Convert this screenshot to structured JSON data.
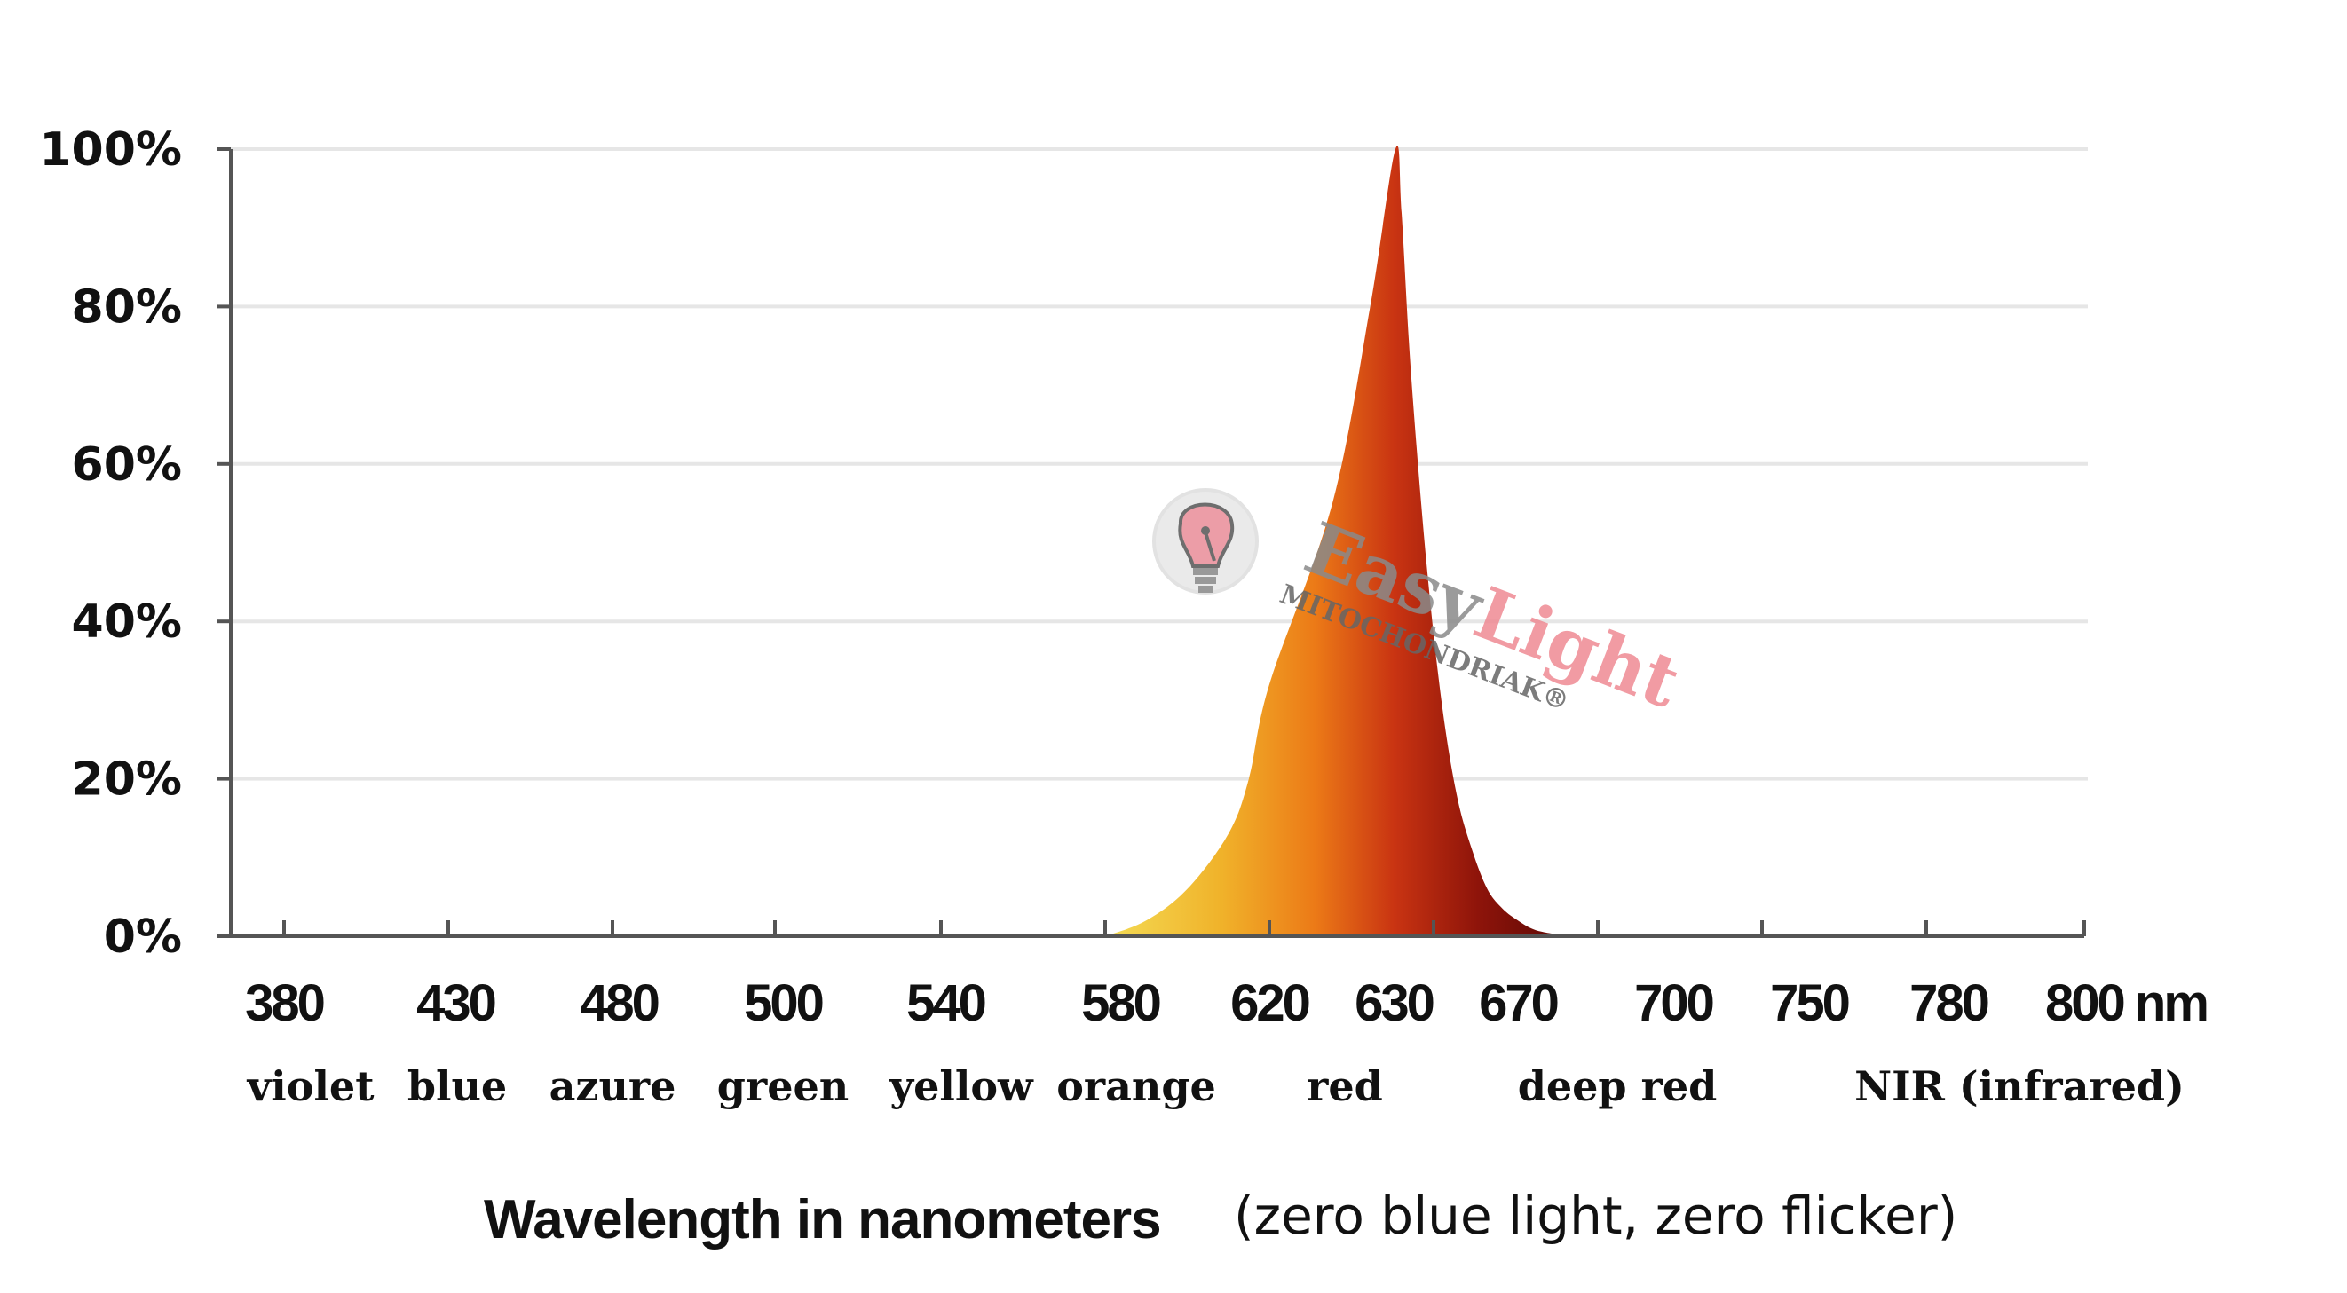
{
  "chart_data": {
    "type": "area",
    "y_ticks": [
      "0%",
      "20%",
      "40%",
      "60%",
      "80%",
      "100%"
    ],
    "ylim": [
      0,
      100
    ],
    "x_tick_labels": [
      "380",
      "430",
      "480",
      "500",
      "540",
      "580",
      "620",
      "630",
      "670",
      "700",
      "750",
      "780",
      "800 nm"
    ],
    "band_labels": [
      "violet",
      "blue",
      "azure",
      "green",
      "yellow",
      "orange",
      "red",
      "deep red",
      "NIR (infrared)"
    ],
    "xlabel": "Wavelength in nanometers",
    "xlabel_note": "(zero blue light, zero flicker)",
    "grid": true,
    "series": [
      {
        "x": [
          580,
          590,
          600,
          610,
          615,
          620,
          625,
          628,
          630,
          632,
          635,
          640,
          645,
          650,
          655,
          660,
          665,
          670,
          675,
          680,
          690
        ],
        "y": [
          0,
          2,
          6,
          13,
          20,
          32,
          55,
          80,
          100,
          92,
          72,
          48,
          30,
          18,
          11,
          6,
          3.5,
          2,
          1,
          0.5,
          0
        ]
      }
    ],
    "colors": {
      "yellow": "#f2d13a",
      "orange": "#ec7a17",
      "red": "#c93412",
      "deep_red": "#6e0a06",
      "grid": "#e6e6e6",
      "axis": "#555555"
    }
  },
  "watermark": {
    "brand": "EasyLight",
    "brand_first": "Easy",
    "brand_second": "Light",
    "tagline": "MITOCHONDRIAK®",
    "icon": "brain-bulb-icon"
  }
}
